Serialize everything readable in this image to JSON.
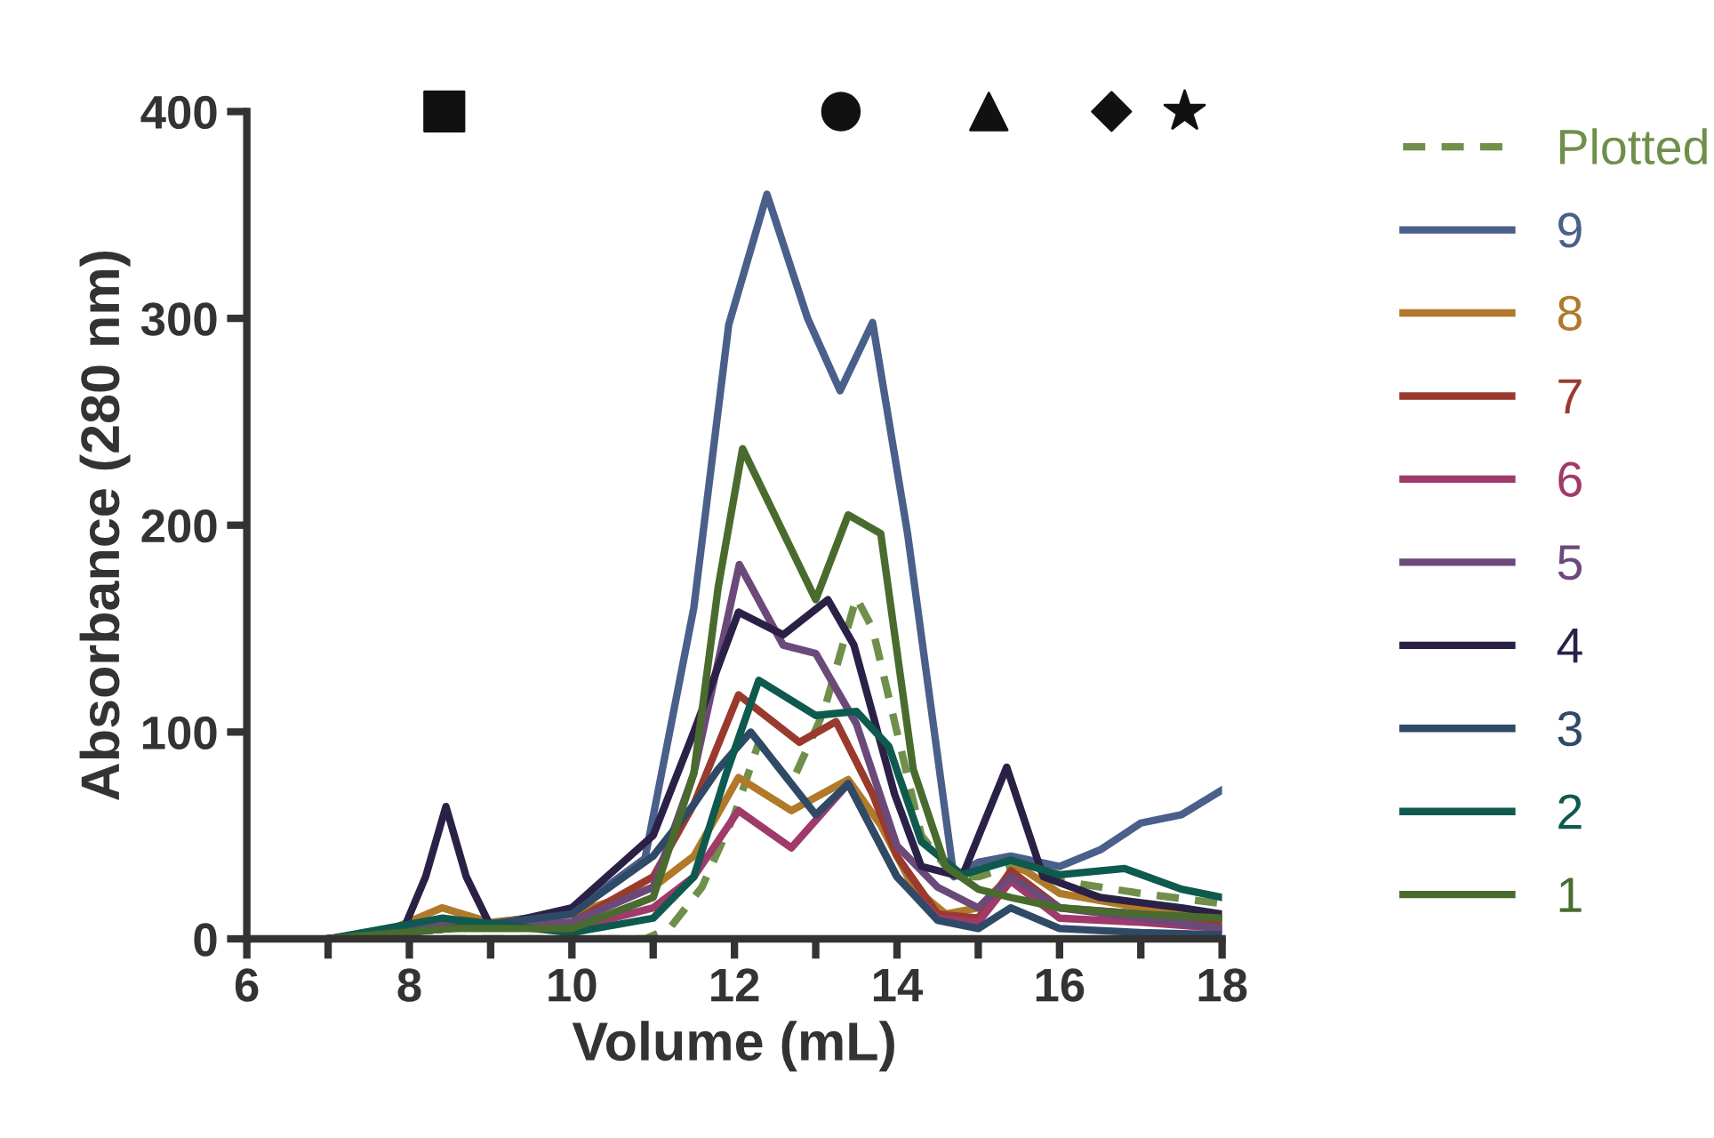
{
  "chart_data": {
    "type": "line",
    "xlabel": "Volume (mL)",
    "ylabel": "Absorbance (280 nm)",
    "xlim": [
      6,
      18
    ],
    "ylim": [
      0,
      400
    ],
    "xticks": [
      6,
      {
        "value": 7,
        "label": null
      },
      8,
      {
        "value": 9,
        "label": null
      },
      10,
      {
        "value": 11,
        "label": null
      },
      12,
      {
        "value": 13,
        "label": null
      },
      14,
      {
        "value": 15,
        "label": null
      },
      16,
      {
        "value": 17,
        "label": null
      },
      18
    ],
    "yticks": [
      0,
      100,
      200,
      300,
      400
    ],
    "grid": false,
    "legend": "right",
    "marker": "none",
    "line_style": "solid",
    "series": [
      {
        "name": "Plotted",
        "color": "#6f8f4a",
        "line_style": "dashed",
        "x": [
          7,
          8,
          9,
          10,
          10.9,
          11.2,
          11.6,
          12.0,
          12.3,
          12.7,
          13.1,
          13.5,
          13.7,
          14.0,
          14.3,
          14.7,
          15.0,
          15.4,
          16,
          17,
          18
        ],
        "values": [
          0,
          0,
          0,
          0,
          0,
          5,
          25,
          60,
          95,
          75,
          110,
          165,
          150,
          100,
          50,
          30,
          30,
          35,
          28,
          22,
          17
        ]
      },
      {
        "name": "9",
        "color": "#4a5f8a",
        "x": [
          7,
          8.5,
          10,
          10.9,
          11.5,
          11.93,
          12.4,
          12.9,
          13.3,
          13.7,
          14.13,
          14.7,
          15,
          15.4,
          16,
          16.5,
          17,
          17.5,
          18
        ],
        "values": [
          0,
          5,
          13,
          39,
          160,
          297,
          360,
          300,
          265,
          298,
          196,
          30,
          37,
          40,
          35,
          43,
          56,
          60,
          72
        ]
      },
      {
        "name": "8",
        "color": "#b07a2a",
        "x": [
          7,
          7.8,
          8.4,
          9,
          10,
          11,
          11.5,
          12.05,
          12.7,
          13.4,
          13.8,
          14.2,
          14.6,
          15,
          15.5,
          16,
          17,
          18
        ],
        "values": [
          0,
          5,
          15,
          8,
          12,
          25,
          40,
          78,
          62,
          77,
          55,
          25,
          12,
          15,
          35,
          22,
          15,
          10
        ]
      },
      {
        "name": "7",
        "color": "#9a3a2e",
        "x": [
          7,
          8.5,
          10,
          11,
          11.5,
          12.05,
          12.8,
          13.25,
          13.7,
          14,
          14.5,
          15,
          15.4,
          16,
          17,
          18
        ],
        "values": [
          0,
          5,
          8,
          30,
          65,
          118,
          95,
          105,
          70,
          40,
          12,
          10,
          33,
          15,
          12,
          8
        ]
      },
      {
        "name": "6",
        "color": "#a03a6a",
        "x": [
          7,
          8.4,
          10,
          11,
          11.5,
          12.05,
          12.7,
          13.4,
          14,
          14.5,
          15,
          15.4,
          16,
          17,
          18
        ],
        "values": [
          0,
          8,
          5,
          15,
          30,
          62,
          44,
          75,
          30,
          10,
          8,
          28,
          10,
          8,
          5
        ]
      },
      {
        "name": "5",
        "color": "#6b4a7a",
        "x": [
          7,
          8.4,
          10,
          11,
          11.5,
          12.06,
          12.6,
          13.0,
          13.5,
          14,
          14.5,
          15,
          15.4,
          16,
          17,
          18
        ],
        "values": [
          0,
          6,
          8,
          25,
          80,
          181,
          142,
          138,
          104,
          45,
          25,
          15,
          30,
          15,
          10,
          5
        ]
      },
      {
        "name": "4",
        "color": "#2b2147",
        "x": [
          7,
          7.9,
          8.2,
          8.45,
          8.7,
          9.0,
          10,
          11,
          11.5,
          12.05,
          12.6,
          13.15,
          13.47,
          13.97,
          14.3,
          14.8,
          15.35,
          15.8,
          16.5,
          17.5,
          18
        ],
        "values": [
          0,
          2,
          30,
          64,
          30,
          6,
          15,
          50,
          100,
          158,
          147,
          164,
          142,
          70,
          35,
          30,
          83,
          30,
          20,
          15,
          12
        ]
      },
      {
        "name": "3",
        "color": "#2f4a66",
        "x": [
          7,
          8.5,
          10,
          11,
          11.5,
          11.8,
          12.2,
          13.0,
          13.4,
          14,
          14.5,
          15,
          15.4,
          16,
          17,
          18
        ],
        "values": [
          0,
          5,
          12,
          40,
          65,
          82,
          100,
          60,
          75,
          30,
          9,
          5,
          15,
          5,
          3,
          2
        ]
      },
      {
        "name": "2",
        "color": "#0e5a4e",
        "x": [
          7,
          8.4,
          10,
          11,
          11.5,
          11.9,
          12.3,
          13.0,
          13.5,
          13.9,
          14.3,
          14.8,
          15.4,
          16,
          16.8,
          17.5,
          18
        ],
        "values": [
          0,
          10,
          3,
          10,
          30,
          80,
          125,
          108,
          110,
          93,
          47,
          31,
          38,
          31,
          34,
          24,
          20
        ]
      },
      {
        "name": "1",
        "color": "#4a6b2e",
        "x": [
          7,
          8.5,
          10,
          11,
          11.5,
          11.8,
          12.1,
          13.0,
          13.4,
          13.8,
          14.2,
          14.6,
          15,
          15.4,
          16,
          17,
          18
        ],
        "values": [
          0,
          5,
          5,
          20,
          80,
          170,
          237,
          164,
          205,
          196,
          82,
          35,
          24,
          20,
          15,
          12,
          10
        ]
      },
      {
        "type": "scatter",
        "color": "#111111",
        "marker": "square",
        "x": [
          8.43
        ],
        "values": [
          400
        ]
      },
      {
        "type": "scatter",
        "color": "#111111",
        "marker": "circle",
        "x": [
          13.31
        ],
        "values": [
          400
        ]
      },
      {
        "type": "scatter",
        "color": "#111111",
        "marker": "triangle",
        "x": [
          15.13
        ],
        "values": [
          400
        ]
      },
      {
        "type": "scatter",
        "color": "#111111",
        "marker": "diamond",
        "x": [
          16.64
        ],
        "values": [
          400
        ]
      },
      {
        "type": "scatter",
        "color": "#111111",
        "marker": "star",
        "x": [
          17.54
        ],
        "values": [
          400
        ]
      }
    ]
  }
}
